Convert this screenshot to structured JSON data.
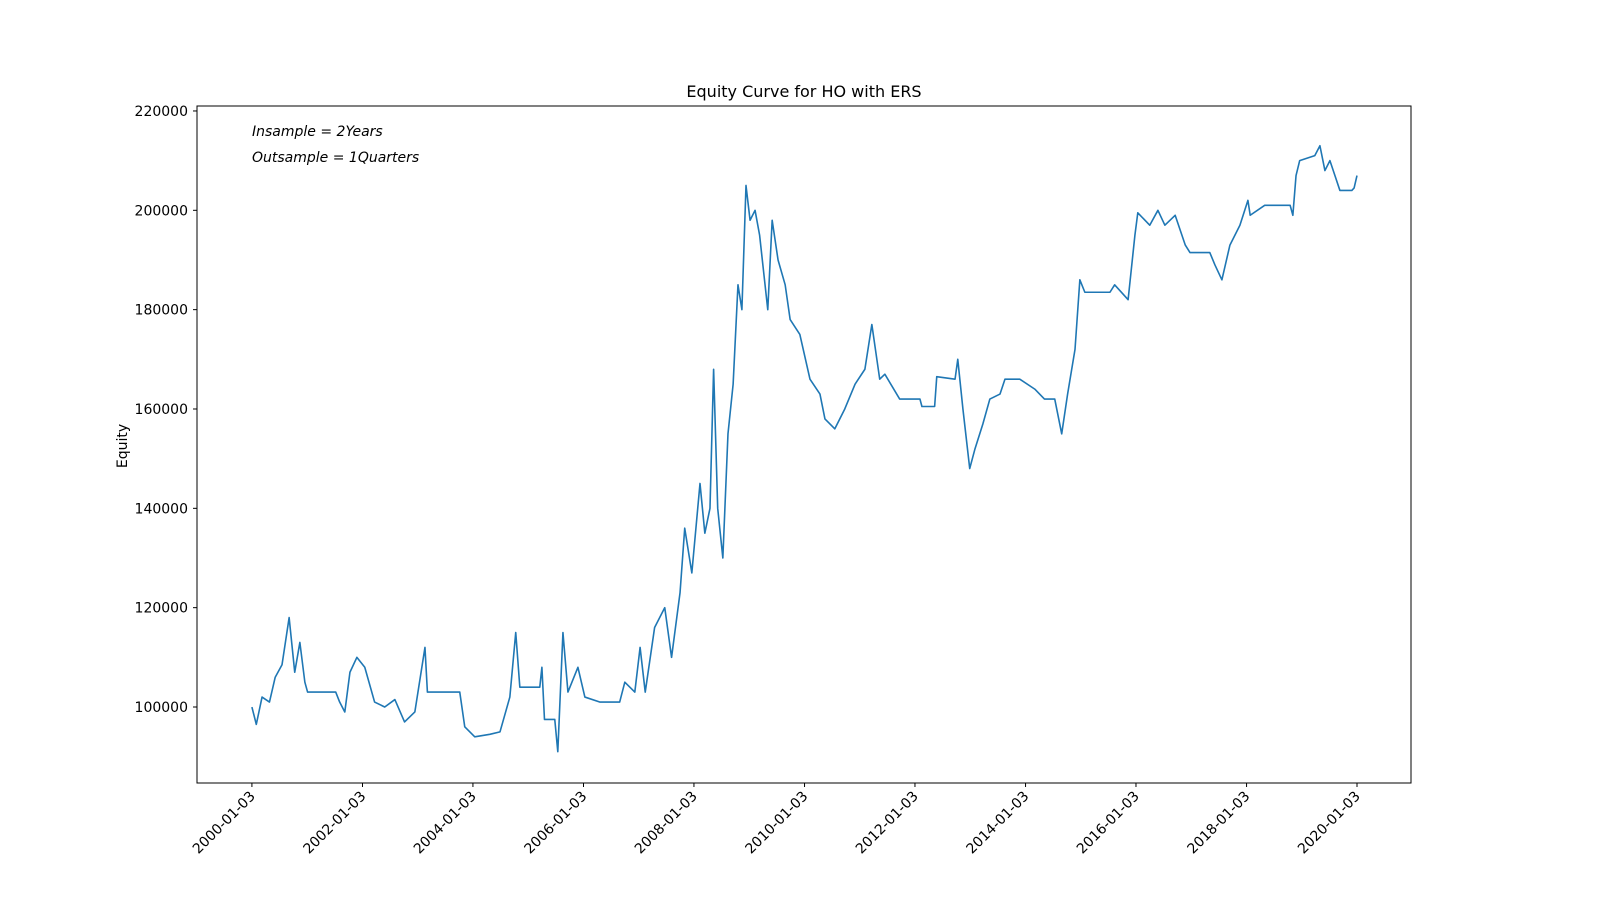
{
  "chart_data": {
    "type": "line",
    "title": "Equity Curve for HO with ERS",
    "y_label": "Equity",
    "annotations": [
      "Insample = 2Years",
      "Outsample = 1Quarters"
    ],
    "xlim": [
      "1999-01-05",
      "2020-12-25"
    ],
    "ylim": [
      84700,
      221000
    ],
    "xticks": [
      "2000-01-03",
      "2002-01-03",
      "2004-01-03",
      "2006-01-03",
      "2008-01-03",
      "2010-01-03",
      "2012-01-03",
      "2014-01-03",
      "2016-01-03",
      "2018-01-03",
      "2020-01-03"
    ],
    "yticks": [
      100000,
      120000,
      140000,
      160000,
      180000,
      200000,
      220000
    ],
    "grid": false,
    "x": [
      "2000-01-03",
      "2000-02-01",
      "2000-03-10",
      "2000-04-28",
      "2000-06-05",
      "2000-07-20",
      "2000-09-05",
      "2000-10-12",
      "2000-11-15",
      "2000-12-18",
      "2001-01-05",
      "2001-07-10",
      "2001-08-05",
      "2001-09-08",
      "2001-10-12",
      "2001-11-27",
      "2002-01-18",
      "2002-03-24",
      "2002-05-30",
      "2002-08-05",
      "2002-10-08",
      "2002-12-15",
      "2003-02-20",
      "2003-03-08",
      "2003-10-08",
      "2003-11-10",
      "2004-01-15",
      "2004-04-24",
      "2004-06-30",
      "2004-09-03",
      "2004-10-12",
      "2004-11-08",
      "2005-03-20",
      "2005-04-03",
      "2005-04-20",
      "2005-06-27",
      "2005-07-17",
      "2005-08-20",
      "2005-09-22",
      "2005-11-27",
      "2006-01-12",
      "2006-04-20",
      "2006-08-30",
      "2006-10-03",
      "2006-12-08",
      "2007-01-12",
      "2007-02-15",
      "2007-04-18",
      "2007-06-24",
      "2007-08-08",
      "2007-10-03",
      "2007-11-03",
      "2007-12-20",
      "2008-02-12",
      "2008-03-15",
      "2008-04-18",
      "2008-05-12",
      "2008-06-08",
      "2008-07-12",
      "2008-08-15",
      "2008-09-18",
      "2008-10-20",
      "2008-11-15",
      "2008-12-12",
      "2009-01-08",
      "2009-02-10",
      "2009-03-12",
      "2009-05-05",
      "2009-06-03",
      "2009-07-12",
      "2009-08-28",
      "2009-09-30",
      "2009-12-03",
      "2010-02-08",
      "2010-04-15",
      "2010-05-18",
      "2010-07-22",
      "2010-09-26",
      "2010-12-03",
      "2011-02-06",
      "2011-03-24",
      "2011-05-15",
      "2011-06-18",
      "2011-09-24",
      "2012-02-05",
      "2012-02-18",
      "2012-05-12",
      "2012-05-26",
      "2012-09-24",
      "2012-10-12",
      "2012-11-15",
      "2012-12-30",
      "2013-02-03",
      "2013-03-27",
      "2013-05-12",
      "2013-07-18",
      "2013-08-20",
      "2013-11-26",
      "2014-03-05",
      "2014-05-08",
      "2014-07-15",
      "2014-08-30",
      "2014-10-08",
      "2014-11-26",
      "2014-12-28",
      "2015-01-30",
      "2015-07-15",
      "2015-08-15",
      "2015-11-12",
      "2015-12-27",
      "2016-01-15",
      "2016-04-03",
      "2016-05-27",
      "2016-07-12",
      "2016-09-18",
      "2016-11-24",
      "2016-12-25",
      "2017-05-05",
      "2017-06-08",
      "2017-07-24",
      "2017-09-15",
      "2017-11-20",
      "2018-01-12",
      "2018-01-27",
      "2018-05-03",
      "2018-10-18",
      "2018-11-05",
      "2018-11-26",
      "2018-12-20",
      "2019-03-30",
      "2019-05-03",
      "2019-06-05",
      "2019-07-08",
      "2019-08-10",
      "2019-09-12",
      "2019-11-30",
      "2019-12-15",
      "2020-01-03"
    ],
    "series": [
      {
        "name": "Equity",
        "color": "#1f77b4",
        "values": [
          100000,
          96500,
          102000,
          101000,
          106000,
          108500,
          118000,
          107000,
          113000,
          105000,
          103000,
          103000,
          101000,
          99000,
          107000,
          110000,
          108000,
          101000,
          100000,
          101500,
          97000,
          99000,
          112000,
          103000,
          103000,
          96000,
          94000,
          94500,
          95000,
          102000,
          115000,
          104000,
          104000,
          108000,
          97500,
          97500,
          91000,
          115000,
          103000,
          108000,
          102000,
          101000,
          101000,
          105000,
          103000,
          112000,
          103000,
          116000,
          120000,
          110000,
          123000,
          136000,
          127000,
          145000,
          135000,
          140000,
          168000,
          140000,
          130000,
          155000,
          165000,
          185000,
          180000,
          205000,
          198000,
          200000,
          195000,
          180000,
          198000,
          190000,
          185000,
          178000,
          175000,
          166000,
          163000,
          158000,
          156000,
          160000,
          165000,
          168000,
          177000,
          166000,
          167000,
          162000,
          162000,
          160500,
          160500,
          166500,
          166000,
          170000,
          160000,
          148000,
          152000,
          157000,
          162000,
          163000,
          166000,
          166000,
          164000,
          162000,
          162000,
          155000,
          163000,
          172000,
          186000,
          183500,
          183500,
          185000,
          182000,
          195000,
          199500,
          197000,
          200000,
          197000,
          199000,
          193000,
          191500,
          191500,
          189000,
          186000,
          193000,
          197000,
          202000,
          199000,
          201000,
          201000,
          199000,
          207000,
          210000,
          211000,
          213000,
          208000,
          210000,
          207000,
          204000,
          204000,
          204500,
          207000
        ]
      }
    ]
  }
}
